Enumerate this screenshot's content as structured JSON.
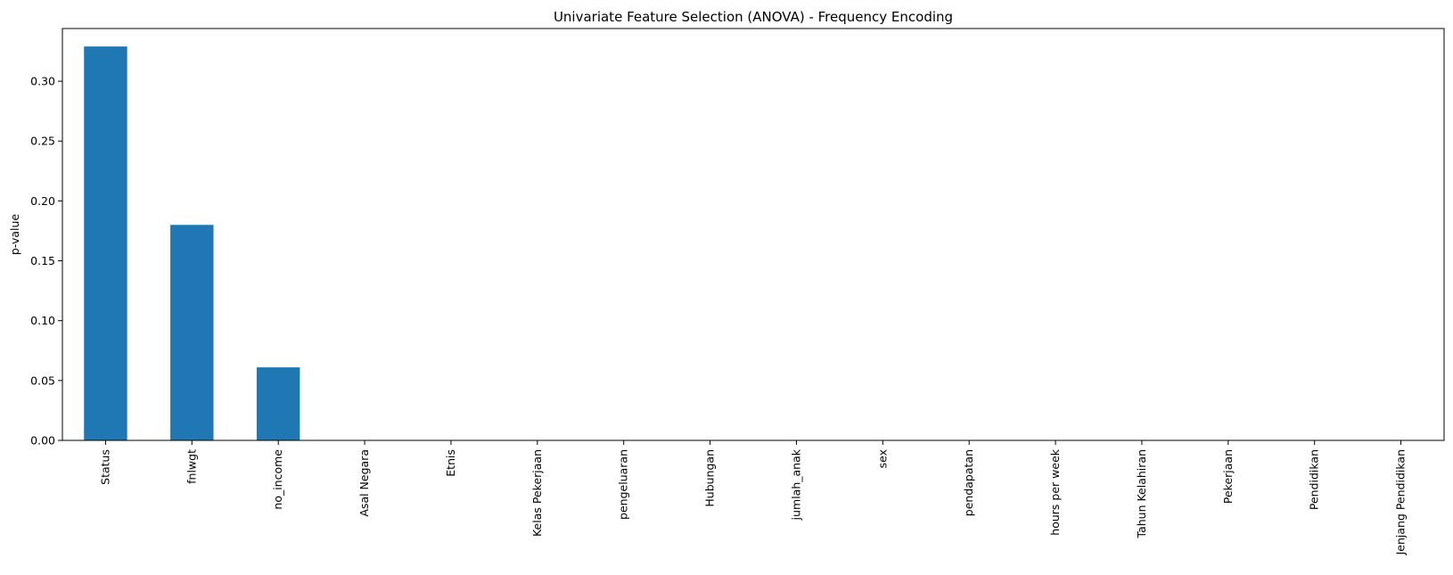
{
  "chart_data": {
    "type": "bar",
    "title": "Univariate Feature Selection (ANOVA) - Frequency Encoding",
    "xlabel": "",
    "ylabel": "p-value",
    "categories": [
      "Status",
      "fnlwgt",
      "no_income",
      "Asal Negara",
      "Etnis",
      "Kelas Pekerjaan",
      "pengeluaran",
      "Hubungan",
      "jumlah_anak",
      "sex",
      "pendapatan",
      "hours per week",
      "Tahun Kelahiran",
      "Pekerjaan",
      "Pendidikan",
      "Jenjang Pendidikan"
    ],
    "values": [
      0.329,
      0.18,
      0.061,
      0,
      0,
      0,
      0,
      0,
      0,
      0,
      0,
      0,
      0,
      0,
      0,
      0
    ],
    "ylim": [
      0,
      0.344
    ],
    "yticks": [
      "0.00",
      "0.05",
      "0.10",
      "0.15",
      "0.20",
      "0.25",
      "0.30"
    ],
    "bar_color": "#1f77b4",
    "grid": false,
    "legend": "none"
  }
}
